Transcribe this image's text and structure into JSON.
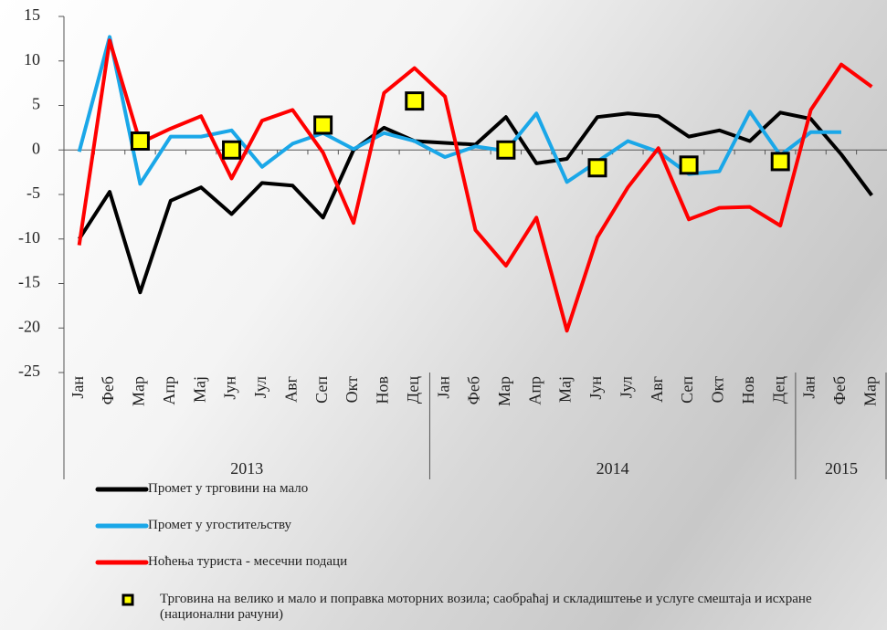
{
  "chart_data": {
    "type": "line",
    "categories": [
      "Јан",
      "Феб",
      "Мар",
      "Апр",
      "Мај",
      "Јун",
      "Јул",
      "Авг",
      "Сеп",
      "Окт",
      "Нов",
      "Дец",
      "Јан",
      "Феб",
      "Мар",
      "Апр",
      "Мај",
      "Јун",
      "Јул",
      "Авг",
      "Сеп",
      "Окт",
      "Нов",
      "Дец",
      "Јан",
      "Феб",
      "Мар"
    ],
    "years": [
      "2013",
      "2014",
      "2015"
    ],
    "ylim": [
      -25,
      15
    ],
    "yticks": [
      -25,
      -20,
      -15,
      -10,
      -5,
      0,
      5,
      10,
      15
    ],
    "series": [
      {
        "name": "Промет у трговини на мало",
        "color": "#000000",
        "marker": "line",
        "values": [
          -10,
          -4.7,
          -16,
          -5.7,
          -4.2,
          -7.2,
          -3.7,
          -4,
          -7.6,
          0,
          2.5,
          1,
          0.8,
          0.6,
          3.7,
          -1.5,
          -1,
          3.7,
          4.1,
          3.8,
          1.5,
          2.2,
          1,
          4.2,
          3.5,
          -0.5,
          -5.1
        ]
      },
      {
        "name": "Промет у угоститељству",
        "color": "#1aa7e8",
        "marker": "line",
        "values": [
          -0.2,
          12.7,
          -3.8,
          1.5,
          1.5,
          2.2,
          -1.9,
          0.7,
          1.9,
          0.1,
          1.9,
          1,
          -0.8,
          0.4,
          -0.1,
          4.1,
          -3.6,
          -1.3,
          1,
          -0.2,
          -2.7,
          -2.4,
          4.3,
          -0.6,
          2,
          2,
          null
        ]
      },
      {
        "name": "Ноћења туриста - месечни подаци",
        "color": "#ff0000",
        "marker": "line",
        "values": [
          -10.7,
          12.3,
          0.8,
          2.4,
          3.8,
          -3.2,
          3.3,
          4.5,
          -0.3,
          -8.2,
          6.4,
          9.2,
          6,
          -9,
          -13,
          -7.6,
          -20.3,
          -9.8,
          -4.2,
          0.2,
          -7.8,
          -6.5,
          -6.4,
          -8.5,
          4.5,
          9.6,
          7.1
        ]
      },
      {
        "name": "Трговина на велико и мало и поправка моторних возила; саобраћај и складиштење и услуге смештаја и исхране (национални рачуни)",
        "color": "#ffff00",
        "marker": "square",
        "values": [
          null,
          null,
          1,
          null,
          null,
          0,
          null,
          null,
          2.8,
          null,
          null,
          5.5,
          null,
          null,
          0,
          null,
          null,
          -2,
          null,
          null,
          -1.7,
          null,
          null,
          -1.3,
          null,
          null,
          null
        ]
      }
    ]
  }
}
